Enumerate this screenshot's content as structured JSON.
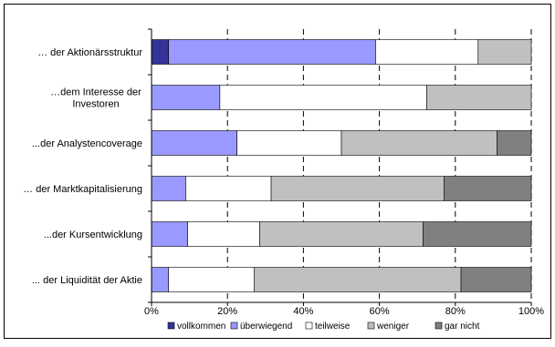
{
  "chart_data": {
    "type": "bar",
    "orientation": "horizontal",
    "stacked": "percent",
    "categories": [
      "… der Aktionärsstruktur",
      "…dem Interesse der Investoren",
      "...der Analystencoverage",
      "… der Marktkapitalisierung",
      "...der Kursentwicklung",
      "... der Liquidität der Aktie"
    ],
    "category_lines": [
      [
        "… der Aktionärsstruktur"
      ],
      [
        "…dem Interesse der",
        "Investoren"
      ],
      [
        "...der Analystencoverage"
      ],
      [
        "… der Marktkapitalisierung"
      ],
      [
        "...der Kursentwicklung"
      ],
      [
        "... der Liquidität der Aktie"
      ]
    ],
    "series": [
      {
        "name": "vollkommen",
        "color": "#333399",
        "values": [
          4.5,
          0,
          0,
          0,
          0,
          0
        ]
      },
      {
        "name": "überwiegend",
        "color": "#9999ff",
        "values": [
          54.5,
          18,
          22.5,
          9,
          9.5,
          4.5
        ]
      },
      {
        "name": "teilweise",
        "color": "#ffffff",
        "values": [
          27,
          54.5,
          27.5,
          22.5,
          19,
          22.5
        ]
      },
      {
        "name": "weniger",
        "color": "#c0c0c0",
        "values": [
          14,
          27.5,
          41,
          45.5,
          43,
          54.5
        ]
      },
      {
        "name": "gar nicht",
        "color": "#808080",
        "values": [
          0,
          0,
          9,
          23,
          28.5,
          18.5
        ]
      }
    ],
    "xlim": [
      0,
      100
    ],
    "x_ticks": [
      "0%",
      "20%",
      "40%",
      "60%",
      "80%",
      "100%"
    ],
    "grid": "vertical dashed",
    "legend_position": "bottom"
  }
}
